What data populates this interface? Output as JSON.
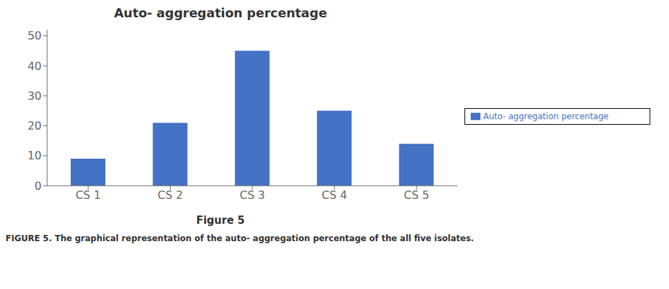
{
  "chart_data": {
    "type": "bar",
    "title": "Auto- aggregation percentage",
    "categories": [
      "CS 1",
      "CS 2",
      "CS 3",
      "CS 4",
      "CS 5"
    ],
    "series": [
      {
        "name": "Auto- aggregation percentage",
        "color": "#4472C4",
        "values": [
          9,
          21,
          45,
          25,
          14
        ]
      }
    ],
    "ylim": [
      0,
      52
    ],
    "yticks": [
      0,
      10,
      20,
      30,
      40,
      50
    ],
    "grid": false,
    "legend": "right",
    "annotations": [
      "Figure 5",
      "FIGURE 5. The graphical representation of the auto- aggregation percentage of the all five isolates."
    ]
  }
}
